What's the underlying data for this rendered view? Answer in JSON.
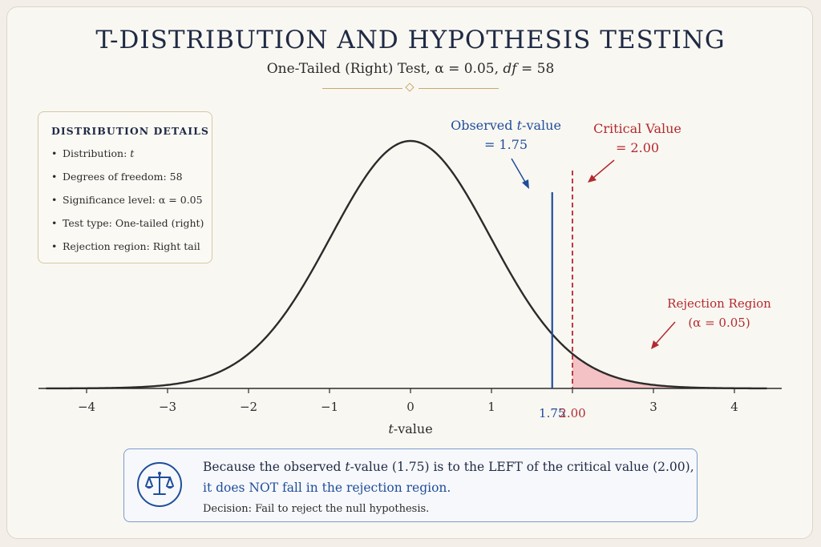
{
  "header": {
    "title": "T-DISTRIBUTION AND HYPOTHESIS TESTING",
    "subtitle_prefix": "One-Tailed (Right) Test, ",
    "subtitle_alpha": "α = 0.05, ",
    "subtitle_df_var": "df",
    "subtitle_df_val": " = 58"
  },
  "details": {
    "heading": "DISTRIBUTION DETAILS",
    "items": [
      {
        "label": "Distribution: ",
        "value": "t",
        "italic": true
      },
      {
        "label": "Degrees of freedom: ",
        "value": "58"
      },
      {
        "label": "Significance level: ",
        "value": "α = 0.05"
      },
      {
        "label": "Test type: ",
        "value": "One-tailed (right)"
      },
      {
        "label": "Rejection region: ",
        "value": "Right tail"
      }
    ],
    "bullet": "•"
  },
  "chart_data": {
    "type": "line",
    "distribution": "t",
    "df": 58,
    "alpha": 0.05,
    "xlabel_var": "t",
    "xlabel_rest": "-value",
    "xlim": [
      -4.6,
      4.6
    ],
    "xticks": [
      -4,
      -3,
      -2,
      -1,
      0,
      1,
      2,
      3,
      4
    ],
    "xtick_labels": [
      "−4",
      "−3",
      "−2",
      "−1",
      "0",
      "1",
      "",
      "3",
      "4"
    ],
    "observed": {
      "value": 1.75,
      "tick_label": "1.75",
      "line1_pre": "Observed ",
      "line1_var": "t",
      "line1_post": "-value",
      "line2": "= 1.75",
      "color": "#1f4e9a"
    },
    "critical": {
      "value": 2.0,
      "tick_label": "2.00",
      "line1": "Critical Value",
      "line2": "= 2.00",
      "color": "#b22a2e"
    },
    "rejection": {
      "line1": "Rejection Region",
      "line2": "(α = 0.05)",
      "fill": "#f4c2c4",
      "color": "#b22a2e"
    },
    "curve_color": "#2b2b2b"
  },
  "decision": {
    "line1_pre": "Because the observed ",
    "line1_var": "t",
    "line1_post": "-value (1.75) is to the LEFT of the critical value (2.00),",
    "line2": "it does NOT fall in the rejection region.",
    "line3": "Decision: Fail to reject the null hypothesis."
  }
}
